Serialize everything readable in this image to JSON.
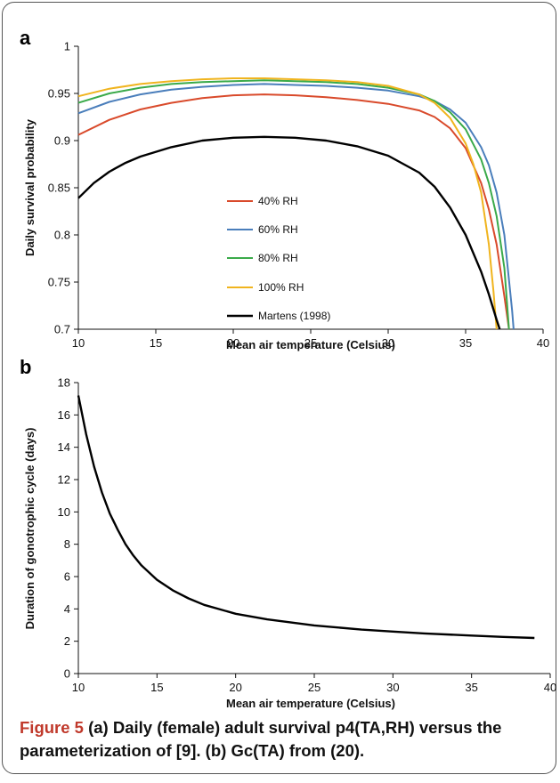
{
  "figure": {
    "caption_label": "Figure 5",
    "caption_text": "(a) Daily (female) adult survival p4(TA,RH) versus the parameterization of [9]. (b) Gc(TA) from (20)."
  },
  "chart_data": [
    {
      "type": "line",
      "panel_label": "a",
      "xlabel": "Mean air temperature (Celsius)",
      "ylabel": "Daily survival probability",
      "xlim": [
        10,
        40
      ],
      "ylim": [
        0.7,
        1
      ],
      "xticks": [
        "10",
        "15",
        "20",
        "25",
        "30",
        "35",
        "40"
      ],
      "yticks": [
        "0.7",
        "0.75",
        "0.8",
        "0.85",
        "0.9",
        "0.95",
        "1"
      ],
      "grid": false,
      "legend_position": "center-left",
      "series": [
        {
          "name": "40% RH",
          "color": "#d94a2b",
          "x": [
            10,
            12,
            14,
            16,
            18,
            20,
            22,
            24,
            26,
            28,
            30,
            32,
            33,
            34,
            35,
            36,
            36.5,
            37,
            37.5,
            37.8
          ],
          "y": [
            0.906,
            0.922,
            0.933,
            0.94,
            0.945,
            0.948,
            0.949,
            0.948,
            0.946,
            0.943,
            0.939,
            0.932,
            0.925,
            0.913,
            0.892,
            0.855,
            0.827,
            0.79,
            0.735,
            0.7
          ]
        },
        {
          "name": "60% RH",
          "color": "#4a7ebb",
          "x": [
            10,
            12,
            14,
            16,
            18,
            20,
            22,
            24,
            26,
            28,
            30,
            32,
            33,
            34,
            35,
            36,
            36.5,
            37,
            37.5,
            38,
            38.1
          ],
          "y": [
            0.929,
            0.941,
            0.949,
            0.954,
            0.957,
            0.959,
            0.96,
            0.959,
            0.958,
            0.956,
            0.953,
            0.947,
            0.942,
            0.933,
            0.919,
            0.893,
            0.874,
            0.845,
            0.8,
            0.72,
            0.7
          ]
        },
        {
          "name": "80% RH",
          "color": "#3aaa4a",
          "x": [
            10,
            12,
            14,
            16,
            18,
            20,
            22,
            24,
            26,
            28,
            30,
            32,
            33,
            34,
            35,
            36,
            36.5,
            37,
            37.5,
            37.8
          ],
          "y": [
            0.94,
            0.95,
            0.956,
            0.96,
            0.962,
            0.963,
            0.964,
            0.963,
            0.962,
            0.96,
            0.956,
            0.949,
            0.942,
            0.93,
            0.912,
            0.88,
            0.855,
            0.82,
            0.765,
            0.7
          ]
        },
        {
          "name": "100% RH",
          "color": "#f0b41e",
          "x": [
            10,
            12,
            14,
            16,
            18,
            20,
            22,
            24,
            26,
            28,
            30,
            32,
            33,
            34,
            35,
            35.5,
            36,
            36.5,
            36.8,
            37
          ],
          "y": [
            0.947,
            0.955,
            0.96,
            0.963,
            0.965,
            0.966,
            0.966,
            0.965,
            0.964,
            0.962,
            0.958,
            0.949,
            0.94,
            0.924,
            0.897,
            0.875,
            0.845,
            0.79,
            0.74,
            0.7
          ]
        },
        {
          "name": "Martens (1998)",
          "color": "#000000",
          "x": [
            10,
            11,
            12,
            13,
            14,
            16,
            18,
            20,
            22,
            24,
            26,
            28,
            30,
            32,
            33,
            34,
            35,
            36,
            36.5,
            37,
            37.2
          ],
          "y": [
            0.839,
            0.855,
            0.867,
            0.876,
            0.883,
            0.893,
            0.9,
            0.903,
            0.904,
            0.903,
            0.9,
            0.894,
            0.884,
            0.866,
            0.851,
            0.829,
            0.8,
            0.761,
            0.737,
            0.71,
            0.7
          ]
        }
      ]
    },
    {
      "type": "line",
      "panel_label": "b",
      "xlabel": "Mean air temperature (Celsius)",
      "ylabel": "Duration of gonotrophic cycle (days)",
      "xlim": [
        10,
        40
      ],
      "ylim": [
        0,
        18
      ],
      "xticks": [
        "10",
        "15",
        "20",
        "25",
        "30",
        "35",
        "40"
      ],
      "yticks": [
        "0",
        "2",
        "4",
        "6",
        "8",
        "10",
        "12",
        "14",
        "16",
        "18"
      ],
      "grid": false,
      "series": [
        {
          "color": "#000000",
          "x": [
            10,
            10.5,
            11,
            11.5,
            12,
            12.5,
            13,
            13.5,
            14,
            15,
            16,
            17,
            18,
            20,
            22,
            25,
            28,
            30,
            32,
            35,
            37,
            39
          ],
          "y": [
            17.2,
            14.8,
            12.8,
            11.2,
            9.9,
            8.9,
            8.0,
            7.3,
            6.7,
            5.8,
            5.15,
            4.65,
            4.25,
            3.7,
            3.35,
            2.98,
            2.72,
            2.6,
            2.48,
            2.35,
            2.27,
            2.2
          ]
        }
      ]
    }
  ]
}
